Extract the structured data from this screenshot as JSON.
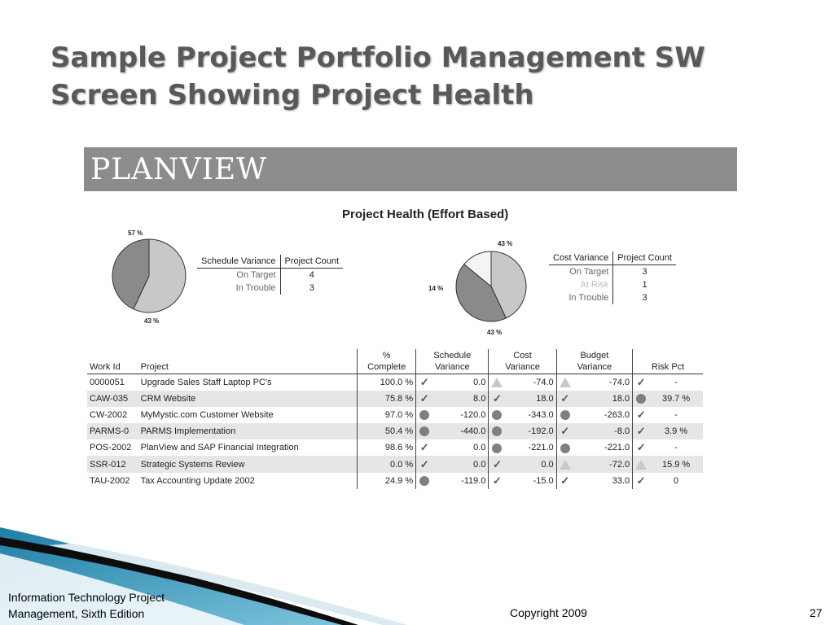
{
  "slide": {
    "title_line1": "Sample Project Portfolio Management SW",
    "title_line2": "Screen Showing Project Health"
  },
  "banner": {
    "logo": "PLANVIEW"
  },
  "health_title": "Project Health (Effort Based)",
  "schedule_pie": {
    "label_top": "57 %",
    "label_bottom": "43 %",
    "slices": [
      {
        "name": "On Target",
        "percent": 57,
        "color": "#c8c8c8"
      },
      {
        "name": "In Trouble",
        "percent": 43,
        "color": "#8a8a8a"
      }
    ]
  },
  "cost_pie": {
    "label_top": "43 %",
    "label_left": "14 %",
    "label_bottom": "43 %",
    "slices": [
      {
        "name": "On Target",
        "percent": 43,
        "color": "#c8c8c8"
      },
      {
        "name": "In Trouble",
        "percent": 43,
        "color": "#8a8a8a"
      },
      {
        "name": "At Risk",
        "percent": 14,
        "color": "#f4f4f4"
      }
    ]
  },
  "schedule_table": {
    "headers": [
      "Schedule Variance",
      "Project Count"
    ],
    "rows": [
      {
        "label": "On Target",
        "count": "4"
      },
      {
        "label": "In Trouble",
        "count": "3"
      }
    ]
  },
  "cost_table": {
    "headers": [
      "Cost Variance",
      "Project Count"
    ],
    "rows": [
      {
        "label": "On Target",
        "count": "3"
      },
      {
        "label": "At Risk",
        "count": "1"
      },
      {
        "label": "In Trouble",
        "count": "3"
      }
    ]
  },
  "projects": {
    "headers": {
      "work_id": "Work Id",
      "project": "Project",
      "pct_line1": "%",
      "pct_line2": "Complete",
      "sched_line1": "Schedule",
      "sched_line2": "Variance",
      "cost_line1": "Cost",
      "cost_line2": "Variance",
      "budget_line1": "Budget",
      "budget_line2": "Variance",
      "risk": "Risk Pct"
    },
    "rows": [
      {
        "id": "0000051",
        "name": "Upgrade Sales Staff Laptop PC's",
        "pct": "100.0 %",
        "sched_icon": "check-icon",
        "sched": "0.0",
        "cost_icon": "triangle-icon",
        "cost": "-74.0",
        "budget_icon": "triangle-icon",
        "budget": "-74.0",
        "risk_icon": "check-icon",
        "risk": "-"
      },
      {
        "id": "CAW-035",
        "name": "CRM Website",
        "pct": "75.8 %",
        "sched_icon": "check-icon",
        "sched": "8.0",
        "cost_icon": "check-icon",
        "cost": "18.0",
        "budget_icon": "check-icon",
        "budget": "18.0",
        "risk_icon": "circle-icon",
        "risk": "39.7 %"
      },
      {
        "id": "CW-2002",
        "name": "MyMystic.com Customer Website",
        "pct": "97.0 %",
        "sched_icon": "circle-icon",
        "sched": "-120.0",
        "cost_icon": "circle-icon",
        "cost": "-343.0",
        "budget_icon": "circle-icon",
        "budget": "-263.0",
        "risk_icon": "check-icon",
        "risk": "-"
      },
      {
        "id": "PARMS-0",
        "name": "PARMS Implementation",
        "pct": "50.4 %",
        "sched_icon": "circle-icon",
        "sched": "-440.0",
        "cost_icon": "circle-icon",
        "cost": "-192.0",
        "budget_icon": "check-icon",
        "budget": "-8.0",
        "risk_icon": "check-icon",
        "risk": "3.9 %"
      },
      {
        "id": "POS-2002",
        "name": "PlanView and SAP Financial Integration",
        "pct": "98.6 %",
        "sched_icon": "check-icon",
        "sched": "0.0",
        "cost_icon": "circle-icon",
        "cost": "-221.0",
        "budget_icon": "circle-icon",
        "budget": "-221.0",
        "risk_icon": "check-icon",
        "risk": "-"
      },
      {
        "id": "SSR-012",
        "name": "Strategic Systems Review",
        "pct": "0.0 %",
        "sched_icon": "check-icon",
        "sched": "0.0",
        "cost_icon": "check-icon",
        "cost": "0.0",
        "budget_icon": "triangle-icon",
        "budget": "-72.0",
        "risk_icon": "triangle-icon",
        "risk": "15.9 %"
      },
      {
        "id": "TAU-2002",
        "name": "Tax Accounting Update 2002",
        "pct": "24.9 %",
        "sched_icon": "circle-icon",
        "sched": "-119.0",
        "cost_icon": "check-icon",
        "cost": "-15.0",
        "budget_icon": "check-icon",
        "budget": "33.0",
        "risk_icon": "check-icon",
        "risk": "0"
      }
    ]
  },
  "footer": {
    "left_line1": "Information Technology Project",
    "left_line2": "Management, Sixth Edition",
    "center": "Copyright 2009",
    "page": "27"
  },
  "colors": {
    "title": "#595959",
    "banner": "#8c8c8c",
    "row_alt": "#e6e6e6",
    "wave_teal": "#1f7fa6"
  }
}
